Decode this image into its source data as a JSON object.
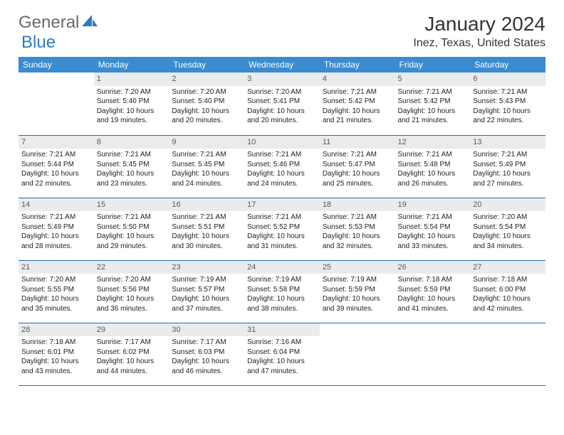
{
  "logo": {
    "general": "General",
    "blue": "Blue"
  },
  "title": "January 2024",
  "location": "Inez, Texas, United States",
  "colors": {
    "header_bg": "#3b8bd0",
    "header_text": "#ffffff",
    "daynum_bg": "#e9ebed",
    "daynum_text": "#5a5a5a",
    "row_border": "#2f6aa8",
    "logo_gray": "#6b6b6b",
    "logo_blue": "#2f79c2",
    "background": "#ffffff"
  },
  "fonts": {
    "month_title_size_pt": 21,
    "location_size_pt": 12,
    "header_cell_size_pt": 9,
    "body_size_pt": 7.5
  },
  "weekdays": [
    "Sunday",
    "Monday",
    "Tuesday",
    "Wednesday",
    "Thursday",
    "Friday",
    "Saturday"
  ],
  "weeks": [
    [
      {
        "day": "",
        "sunrise": "",
        "sunset": "",
        "daylight": ""
      },
      {
        "day": "1",
        "sunrise": "Sunrise: 7:20 AM",
        "sunset": "Sunset: 5:40 PM",
        "daylight": "Daylight: 10 hours and 19 minutes."
      },
      {
        "day": "2",
        "sunrise": "Sunrise: 7:20 AM",
        "sunset": "Sunset: 5:40 PM",
        "daylight": "Daylight: 10 hours and 20 minutes."
      },
      {
        "day": "3",
        "sunrise": "Sunrise: 7:20 AM",
        "sunset": "Sunset: 5:41 PM",
        "daylight": "Daylight: 10 hours and 20 minutes."
      },
      {
        "day": "4",
        "sunrise": "Sunrise: 7:21 AM",
        "sunset": "Sunset: 5:42 PM",
        "daylight": "Daylight: 10 hours and 21 minutes."
      },
      {
        "day": "5",
        "sunrise": "Sunrise: 7:21 AM",
        "sunset": "Sunset: 5:42 PM",
        "daylight": "Daylight: 10 hours and 21 minutes."
      },
      {
        "day": "6",
        "sunrise": "Sunrise: 7:21 AM",
        "sunset": "Sunset: 5:43 PM",
        "daylight": "Daylight: 10 hours and 22 minutes."
      }
    ],
    [
      {
        "day": "7",
        "sunrise": "Sunrise: 7:21 AM",
        "sunset": "Sunset: 5:44 PM",
        "daylight": "Daylight: 10 hours and 22 minutes."
      },
      {
        "day": "8",
        "sunrise": "Sunrise: 7:21 AM",
        "sunset": "Sunset: 5:45 PM",
        "daylight": "Daylight: 10 hours and 23 minutes."
      },
      {
        "day": "9",
        "sunrise": "Sunrise: 7:21 AM",
        "sunset": "Sunset: 5:45 PM",
        "daylight": "Daylight: 10 hours and 24 minutes."
      },
      {
        "day": "10",
        "sunrise": "Sunrise: 7:21 AM",
        "sunset": "Sunset: 5:46 PM",
        "daylight": "Daylight: 10 hours and 24 minutes."
      },
      {
        "day": "11",
        "sunrise": "Sunrise: 7:21 AM",
        "sunset": "Sunset: 5:47 PM",
        "daylight": "Daylight: 10 hours and 25 minutes."
      },
      {
        "day": "12",
        "sunrise": "Sunrise: 7:21 AM",
        "sunset": "Sunset: 5:48 PM",
        "daylight": "Daylight: 10 hours and 26 minutes."
      },
      {
        "day": "13",
        "sunrise": "Sunrise: 7:21 AM",
        "sunset": "Sunset: 5:49 PM",
        "daylight": "Daylight: 10 hours and 27 minutes."
      }
    ],
    [
      {
        "day": "14",
        "sunrise": "Sunrise: 7:21 AM",
        "sunset": "Sunset: 5:49 PM",
        "daylight": "Daylight: 10 hours and 28 minutes."
      },
      {
        "day": "15",
        "sunrise": "Sunrise: 7:21 AM",
        "sunset": "Sunset: 5:50 PM",
        "daylight": "Daylight: 10 hours and 29 minutes."
      },
      {
        "day": "16",
        "sunrise": "Sunrise: 7:21 AM",
        "sunset": "Sunset: 5:51 PM",
        "daylight": "Daylight: 10 hours and 30 minutes."
      },
      {
        "day": "17",
        "sunrise": "Sunrise: 7:21 AM",
        "sunset": "Sunset: 5:52 PM",
        "daylight": "Daylight: 10 hours and 31 minutes."
      },
      {
        "day": "18",
        "sunrise": "Sunrise: 7:21 AM",
        "sunset": "Sunset: 5:53 PM",
        "daylight": "Daylight: 10 hours and 32 minutes."
      },
      {
        "day": "19",
        "sunrise": "Sunrise: 7:21 AM",
        "sunset": "Sunset: 5:54 PM",
        "daylight": "Daylight: 10 hours and 33 minutes."
      },
      {
        "day": "20",
        "sunrise": "Sunrise: 7:20 AM",
        "sunset": "Sunset: 5:54 PM",
        "daylight": "Daylight: 10 hours and 34 minutes."
      }
    ],
    [
      {
        "day": "21",
        "sunrise": "Sunrise: 7:20 AM",
        "sunset": "Sunset: 5:55 PM",
        "daylight": "Daylight: 10 hours and 35 minutes."
      },
      {
        "day": "22",
        "sunrise": "Sunrise: 7:20 AM",
        "sunset": "Sunset: 5:56 PM",
        "daylight": "Daylight: 10 hours and 36 minutes."
      },
      {
        "day": "23",
        "sunrise": "Sunrise: 7:19 AM",
        "sunset": "Sunset: 5:57 PM",
        "daylight": "Daylight: 10 hours and 37 minutes."
      },
      {
        "day": "24",
        "sunrise": "Sunrise: 7:19 AM",
        "sunset": "Sunset: 5:58 PM",
        "daylight": "Daylight: 10 hours and 38 minutes."
      },
      {
        "day": "25",
        "sunrise": "Sunrise: 7:19 AM",
        "sunset": "Sunset: 5:59 PM",
        "daylight": "Daylight: 10 hours and 39 minutes."
      },
      {
        "day": "26",
        "sunrise": "Sunrise: 7:18 AM",
        "sunset": "Sunset: 5:59 PM",
        "daylight": "Daylight: 10 hours and 41 minutes."
      },
      {
        "day": "27",
        "sunrise": "Sunrise: 7:18 AM",
        "sunset": "Sunset: 6:00 PM",
        "daylight": "Daylight: 10 hours and 42 minutes."
      }
    ],
    [
      {
        "day": "28",
        "sunrise": "Sunrise: 7:18 AM",
        "sunset": "Sunset: 6:01 PM",
        "daylight": "Daylight: 10 hours and 43 minutes."
      },
      {
        "day": "29",
        "sunrise": "Sunrise: 7:17 AM",
        "sunset": "Sunset: 6:02 PM",
        "daylight": "Daylight: 10 hours and 44 minutes."
      },
      {
        "day": "30",
        "sunrise": "Sunrise: 7:17 AM",
        "sunset": "Sunset: 6:03 PM",
        "daylight": "Daylight: 10 hours and 46 minutes."
      },
      {
        "day": "31",
        "sunrise": "Sunrise: 7:16 AM",
        "sunset": "Sunset: 6:04 PM",
        "daylight": "Daylight: 10 hours and 47 minutes."
      },
      {
        "day": "",
        "sunrise": "",
        "sunset": "",
        "daylight": ""
      },
      {
        "day": "",
        "sunrise": "",
        "sunset": "",
        "daylight": ""
      },
      {
        "day": "",
        "sunrise": "",
        "sunset": "",
        "daylight": ""
      }
    ]
  ]
}
